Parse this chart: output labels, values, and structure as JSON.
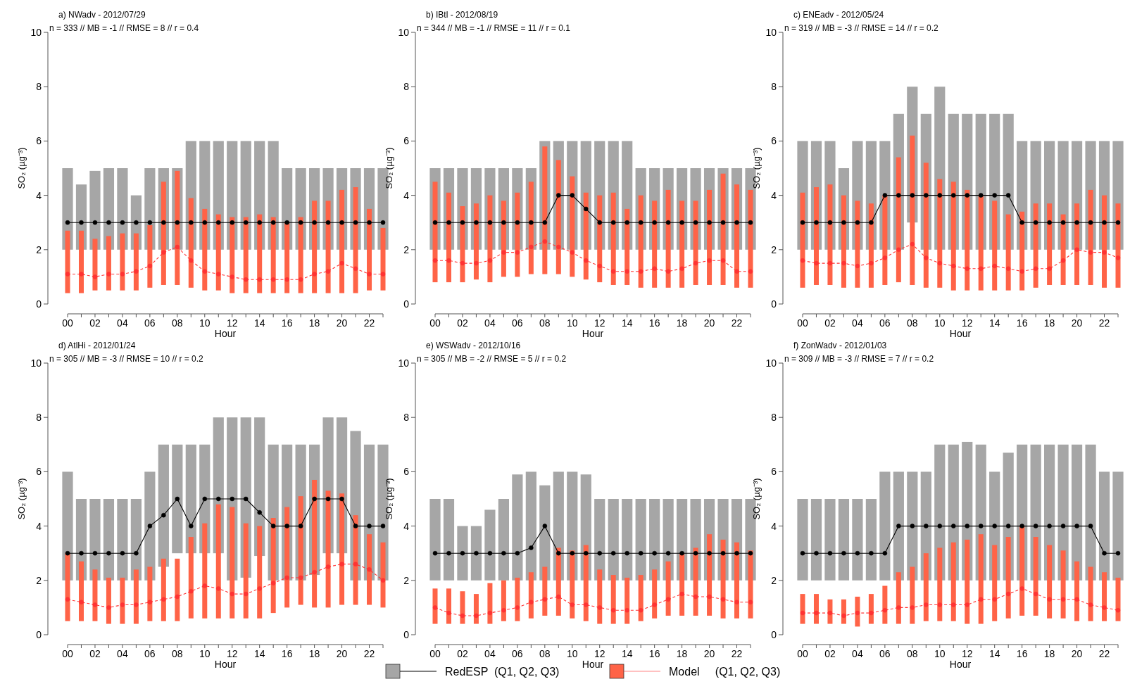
{
  "chart_data": [
    {
      "type": "bar",
      "title": "a) NWadv - 2012/07/29",
      "subtitle": "n = 333 // MB = -1 // RMSE = 8 // r = 0.4",
      "xlabel": "Hour",
      "ylabel": "SO₂ (µg⁻³)",
      "categories": [
        "00",
        null,
        "02",
        null,
        "04",
        null,
        "06",
        null,
        "08",
        null,
        "10",
        null,
        "12",
        null,
        "14",
        null,
        "16",
        null,
        "18",
        null,
        "20",
        null,
        "22",
        null
      ],
      "ylim": [
        0,
        10
      ],
      "yticks": [
        0,
        2,
        4,
        6,
        8,
        10
      ],
      "legend": "bottom",
      "series": [
        {
          "name": "RedESP  (Q1, Q2, Q3)",
          "color": "#a6a6a6",
          "base": [
            2,
            2,
            2,
            2,
            2,
            2,
            2,
            2,
            2,
            2,
            2,
            2,
            2,
            2,
            2,
            2,
            2,
            2,
            2,
            2,
            2,
            2,
            2,
            2
          ],
          "values": [
            3,
            2.4,
            2.9,
            3,
            3,
            2,
            3,
            3,
            3,
            4,
            4,
            4,
            4,
            4,
            4,
            4,
            3,
            3,
            3,
            3,
            3,
            3,
            3,
            3
          ]
        },
        {
          "type": "line",
          "color": "#000000",
          "marker": "circle",
          "line_style": "solid",
          "values": [
            3,
            3,
            3,
            3,
            3,
            3,
            3,
            3,
            3,
            3,
            3,
            3,
            3,
            3,
            3,
            3,
            3,
            3,
            3,
            3,
            3,
            3,
            3,
            3
          ]
        },
        {
          "name": "Model     (Q1, Q2, Q3)",
          "color": "#ff6347",
          "base": [
            0.4,
            0.4,
            0.5,
            0.5,
            0.5,
            0.5,
            0.6,
            0.7,
            0.7,
            0.6,
            0.5,
            0.5,
            0.4,
            0.4,
            0.4,
            0.4,
            0.4,
            0.4,
            0.4,
            0.4,
            0.4,
            0.4,
            0.5,
            0.5
          ],
          "values": [
            2.3,
            2.3,
            1.9,
            2.0,
            2.1,
            2.1,
            2.3,
            3.8,
            4.2,
            3.3,
            3.0,
            2.8,
            2.8,
            2.8,
            2.9,
            2.8,
            2.6,
            2.8,
            3.4,
            3.4,
            3.8,
            3.9,
            3.0,
            2.3
          ]
        },
        {
          "type": "line",
          "color": "#ff3333",
          "marker": "circle",
          "line_style": "dashed",
          "values": [
            1.1,
            1.1,
            1.0,
            1.1,
            1.1,
            1.2,
            1.4,
            1.9,
            2.1,
            1.6,
            1.2,
            1.1,
            1.0,
            0.9,
            0.9,
            0.9,
            0.9,
            0.9,
            1.1,
            1.2,
            1.5,
            1.3,
            1.1,
            1.1
          ]
        }
      ]
    },
    {
      "type": "bar",
      "title": "b) IBtl - 2012/08/19",
      "subtitle": "n = 344 // MB = -1 // RMSE = 11 // r = 0.1",
      "xlabel": "Hour",
      "ylabel": "SO₂ (µg⁻³)",
      "categories": [
        "00",
        null,
        "02",
        null,
        "04",
        null,
        "06",
        null,
        "08",
        null,
        "10",
        null,
        "12",
        null,
        "14",
        null,
        "16",
        null,
        "18",
        null,
        "20",
        null,
        "22",
        null
      ],
      "ylim": [
        0,
        10
      ],
      "yticks": [
        0,
        2,
        4,
        6,
        8,
        10
      ],
      "series": [
        {
          "color": "#a6a6a6",
          "base": [
            2,
            2,
            2,
            2,
            2,
            2,
            2,
            2,
            2,
            2,
            2,
            2,
            2,
            2,
            2,
            2,
            2,
            2,
            2,
            2,
            2,
            2,
            2,
            2
          ],
          "values": [
            3,
            3,
            3,
            3,
            3,
            3,
            3,
            3,
            4,
            4,
            4,
            4,
            4,
            4,
            4,
            3,
            3,
            3,
            3,
            3,
            3,
            3,
            3,
            3
          ]
        },
        {
          "type": "line",
          "color": "#000000",
          "marker": "circle",
          "line_style": "solid",
          "values": [
            3,
            3,
            3,
            3,
            3,
            3,
            3,
            3,
            3,
            4,
            4,
            3.5,
            3,
            3,
            3,
            3,
            3,
            3,
            3,
            3,
            3,
            3,
            3,
            3
          ]
        },
        {
          "color": "#ff6347",
          "base": [
            0.8,
            0.8,
            0.8,
            0.9,
            0.8,
            1.0,
            1.0,
            1.1,
            1.1,
            1.1,
            1.0,
            0.9,
            0.8,
            0.7,
            0.7,
            0.6,
            0.6,
            0.6,
            0.6,
            0.7,
            0.7,
            0.7,
            0.6,
            0.6
          ],
          "values": [
            3.7,
            3.3,
            2.8,
            2.8,
            3.2,
            2.8,
            3.1,
            3.4,
            4.7,
            4.2,
            3.7,
            3.2,
            3.2,
            3.4,
            2.8,
            3.4,
            3.2,
            3.6,
            3.2,
            3.1,
            3.5,
            4.1,
            3.8,
            3.6
          ]
        },
        {
          "type": "line",
          "color": "#ff3333",
          "marker": "circle",
          "line_style": "dashed",
          "values": [
            1.6,
            1.6,
            1.5,
            1.5,
            1.6,
            1.9,
            1.9,
            2.1,
            2.3,
            2.1,
            1.9,
            1.6,
            1.4,
            1.2,
            1.2,
            1.2,
            1.3,
            1.2,
            1.3,
            1.5,
            1.6,
            1.6,
            1.2,
            1.2
          ]
        }
      ]
    },
    {
      "type": "bar",
      "title": "c) ENEadv - 2012/05/24",
      "subtitle": "n = 319 // MB = -3 // RMSE = 14 // r = 0.2",
      "xlabel": "Hour",
      "ylabel": "SO₂ (µg⁻³)",
      "categories": [
        "00",
        null,
        "02",
        null,
        "04",
        null,
        "06",
        null,
        "08",
        null,
        "10",
        null,
        "12",
        null,
        "14",
        null,
        "16",
        null,
        "18",
        null,
        "20",
        null,
        "22",
        null
      ],
      "ylim": [
        0,
        10
      ],
      "yticks": [
        0,
        2,
        4,
        6,
        8,
        10
      ],
      "series": [
        {
          "color": "#a6a6a6",
          "base": [
            2,
            2,
            2,
            2,
            2,
            2,
            2,
            2,
            3,
            2,
            2,
            2,
            2,
            2,
            2,
            2,
            2,
            2,
            2,
            2,
            2,
            2,
            2,
            2
          ],
          "values": [
            4,
            4,
            4,
            3,
            4,
            4,
            4,
            5,
            5,
            5,
            6,
            5,
            5,
            5,
            5,
            5,
            4,
            4,
            4,
            4,
            4,
            4,
            4,
            4
          ]
        },
        {
          "type": "line",
          "color": "#000000",
          "marker": "circle",
          "line_style": "solid",
          "values": [
            3,
            3,
            3,
            3,
            3,
            3,
            4,
            4,
            4,
            4,
            4,
            4,
            4,
            4,
            4,
            4,
            3,
            3,
            3,
            3,
            3,
            3,
            3,
            3
          ]
        },
        {
          "color": "#ff6347",
          "base": [
            0.6,
            0.7,
            0.7,
            0.6,
            0.6,
            0.6,
            0.7,
            0.8,
            0.7,
            0.6,
            0.6,
            0.5,
            0.5,
            0.5,
            0.5,
            0.5,
            0.5,
            0.6,
            0.7,
            0.7,
            0.7,
            0.7,
            0.6,
            0.6
          ],
          "values": [
            3.5,
            3.6,
            3.7,
            3.4,
            3.2,
            3.1,
            3.3,
            4.6,
            5.5,
            4.6,
            4.0,
            4.0,
            3.7,
            3.5,
            3.3,
            2.8,
            2.9,
            3.1,
            3.0,
            2.6,
            3.0,
            3.5,
            3.4,
            3.1
          ]
        },
        {
          "type": "line",
          "color": "#ff3333",
          "marker": "circle",
          "line_style": "dashed",
          "values": [
            1.6,
            1.5,
            1.5,
            1.5,
            1.4,
            1.5,
            1.7,
            2.0,
            2.2,
            1.7,
            1.5,
            1.4,
            1.3,
            1.3,
            1.4,
            1.3,
            1.2,
            1.3,
            1.3,
            1.6,
            2.0,
            1.9,
            1.9,
            1.7
          ]
        }
      ]
    },
    {
      "type": "bar",
      "title": "d) AtlHi - 2012/01/24",
      "subtitle": "n = 305 // MB = -3 // RMSE = 10 // r = 0.2",
      "xlabel": "Hour",
      "ylabel": "SO₂ (µg⁻³)",
      "categories": [
        "00",
        null,
        "02",
        null,
        "04",
        null,
        "06",
        null,
        "08",
        null,
        "10",
        null,
        "12",
        null,
        "14",
        null,
        "16",
        null,
        "18",
        null,
        "20",
        null,
        "22",
        null
      ],
      "ylim": [
        0,
        10
      ],
      "yticks": [
        0,
        2,
        4,
        6,
        8,
        10
      ],
      "series": [
        {
          "color": "#a6a6a6",
          "base": [
            2,
            2,
            2,
            2,
            2,
            2,
            2,
            2.5,
            3,
            3,
            3,
            3,
            2,
            2.1,
            2.9,
            2,
            2,
            2,
            2.2,
            3,
            3,
            2,
            2,
            2
          ],
          "values": [
            4,
            3,
            3,
            3,
            3,
            3,
            4,
            4.5,
            4,
            4,
            4,
            5,
            6,
            5.9,
            5.1,
            5,
            5,
            5,
            4.8,
            5,
            5,
            5.5,
            5,
            5
          ]
        },
        {
          "type": "line",
          "color": "#000000",
          "marker": "circle",
          "line_style": "solid",
          "values": [
            3,
            3,
            3,
            3,
            3,
            3,
            4,
            4.4,
            5,
            4,
            5,
            5,
            5,
            5,
            4.5,
            4,
            4,
            4,
            5,
            5,
            5,
            4,
            4,
            4
          ]
        },
        {
          "color": "#ff6347",
          "base": [
            0.5,
            0.5,
            0.5,
            0.4,
            0.4,
            0.4,
            0.5,
            0.5,
            0.5,
            0.6,
            0.6,
            0.6,
            0.6,
            0.6,
            0.6,
            0.8,
            1.0,
            1.1,
            1.0,
            1.0,
            1.1,
            1.1,
            1.1,
            1.0
          ],
          "values": [
            2.5,
            2.2,
            1.9,
            1.7,
            1.7,
            2.0,
            2.0,
            2.3,
            2.3,
            3.0,
            3.5,
            4.2,
            4.1,
            3.5,
            3.4,
            3.5,
            3.7,
            4.0,
            4.7,
            4.3,
            4.1,
            3.3,
            2.6,
            2.4
          ]
        },
        {
          "type": "line",
          "color": "#ff3333",
          "marker": "circle",
          "line_style": "dashed",
          "values": [
            1.3,
            1.2,
            1.1,
            1.0,
            1.1,
            1.1,
            1.2,
            1.3,
            1.4,
            1.6,
            1.8,
            1.7,
            1.5,
            1.5,
            1.7,
            1.9,
            2.1,
            2.1,
            2.3,
            2.5,
            2.6,
            2.6,
            2.4,
            2.0
          ]
        }
      ]
    },
    {
      "type": "bar",
      "title": "e) WSWadv - 2012/10/16",
      "subtitle": "n = 305 // MB = -2 // RMSE = 5 // r = 0.2",
      "xlabel": "Hour",
      "ylabel": "SO₂ (µg⁻³)",
      "categories": [
        "00",
        null,
        "02",
        null,
        "04",
        null,
        "06",
        null,
        "08",
        null,
        "10",
        null,
        "12",
        null,
        "14",
        null,
        "16",
        null,
        "18",
        null,
        "20",
        null,
        "22",
        null
      ],
      "ylim": [
        0,
        10
      ],
      "yticks": [
        0,
        2,
        4,
        6,
        8,
        10
      ],
      "series": [
        {
          "color": "#a6a6a6",
          "base": [
            2,
            2,
            2,
            2,
            2,
            2,
            2,
            2,
            2,
            2,
            2,
            2,
            2,
            2,
            2,
            2,
            2,
            2,
            2,
            2,
            2,
            2,
            2,
            2
          ],
          "values": [
            3,
            3,
            2,
            2,
            2.6,
            3,
            3.9,
            4,
            3.5,
            4,
            4,
            3.9,
            3,
            3,
            3,
            3,
            3,
            3,
            3,
            3,
            3,
            3,
            3,
            3
          ]
        },
        {
          "type": "line",
          "color": "#000000",
          "marker": "circle",
          "line_style": "solid",
          "values": [
            3,
            3,
            3,
            3,
            3,
            3,
            3,
            3.2,
            4,
            3,
            3,
            3,
            3,
            3,
            3,
            3,
            3,
            3,
            3,
            3,
            3,
            3,
            3,
            3
          ]
        },
        {
          "color": "#ff6347",
          "base": [
            0.4,
            0.4,
            0.4,
            0.4,
            0.4,
            0.5,
            0.5,
            0.6,
            0.7,
            0.7,
            0.6,
            0.5,
            0.4,
            0.4,
            0.4,
            0.5,
            0.6,
            0.7,
            0.7,
            0.7,
            0.7,
            0.6,
            0.6,
            0.6
          ],
          "values": [
            1.3,
            1.3,
            1.2,
            1.1,
            1.5,
            1.5,
            1.6,
            1.7,
            1.8,
            2.5,
            2.5,
            2.8,
            2.0,
            1.8,
            1.7,
            1.7,
            1.8,
            2.0,
            2.3,
            2.5,
            3.0,
            2.9,
            2.8,
            2.5
          ]
        },
        {
          "type": "line",
          "color": "#ff3333",
          "marker": "circle",
          "line_style": "dashed",
          "values": [
            1.0,
            0.8,
            0.7,
            0.7,
            0.8,
            0.9,
            1.0,
            1.2,
            1.3,
            1.4,
            1.1,
            1.1,
            1.0,
            0.9,
            0.9,
            0.9,
            1.1,
            1.3,
            1.5,
            1.4,
            1.4,
            1.3,
            1.2,
            1.2
          ]
        }
      ]
    },
    {
      "type": "bar",
      "title": "f) ZonWadv - 2012/01/03",
      "subtitle": "n = 309 // MB = -3 // RMSE = 7 // r = 0.2",
      "xlabel": "Hour",
      "ylabel": "SO₂ (µg⁻³)",
      "categories": [
        "00",
        null,
        "02",
        null,
        "04",
        null,
        "06",
        null,
        "08",
        null,
        "10",
        null,
        "12",
        null,
        "14",
        null,
        "16",
        null,
        "18",
        null,
        "20",
        null,
        "22",
        null
      ],
      "ylim": [
        0,
        10
      ],
      "yticks": [
        0,
        2,
        4,
        6,
        8,
        10
      ],
      "series": [
        {
          "color": "#a6a6a6",
          "base": [
            2,
            2,
            2,
            2,
            2,
            2,
            2,
            2,
            2,
            2,
            2,
            2,
            2,
            2,
            2,
            2,
            2,
            2,
            2,
            2,
            2,
            2,
            2,
            2
          ],
          "values": [
            3,
            3,
            3,
            3,
            3,
            3,
            4,
            4,
            4,
            4,
            5,
            5,
            5.1,
            5,
            4,
            4.7,
            5,
            5,
            5,
            5,
            5,
            5,
            4,
            4
          ]
        },
        {
          "type": "line",
          "color": "#000000",
          "marker": "circle",
          "line_style": "solid",
          "values": [
            3,
            3,
            3,
            3,
            3,
            3,
            3,
            4,
            4,
            4,
            4,
            4,
            4,
            4,
            4,
            4,
            4,
            4,
            4,
            4,
            4,
            4,
            3,
            3
          ]
        },
        {
          "color": "#ff6347",
          "base": [
            0.4,
            0.4,
            0.4,
            0.4,
            0.3,
            0.4,
            0.4,
            0.4,
            0.4,
            0.5,
            0.5,
            0.5,
            0.4,
            0.4,
            0.5,
            0.6,
            0.7,
            0.7,
            0.6,
            0.6,
            0.5,
            0.5,
            0.5,
            0.5
          ],
          "values": [
            1.1,
            1.1,
            0.9,
            0.9,
            1.1,
            1.1,
            1.4,
            1.9,
            2.1,
            2.5,
            2.7,
            2.9,
            3.1,
            3.3,
            2.8,
            3.0,
            3.3,
            2.9,
            2.7,
            2.5,
            2.2,
            2.0,
            1.8,
            1.6
          ]
        },
        {
          "type": "line",
          "color": "#ff3333",
          "marker": "circle",
          "line_style": "dashed",
          "values": [
            0.8,
            0.8,
            0.8,
            0.7,
            0.8,
            0.8,
            0.9,
            1.0,
            1.0,
            1.1,
            1.1,
            1.1,
            1.1,
            1.3,
            1.3,
            1.5,
            1.7,
            1.5,
            1.3,
            1.3,
            1.3,
            1.1,
            1.0,
            0.9
          ]
        }
      ]
    }
  ]
}
